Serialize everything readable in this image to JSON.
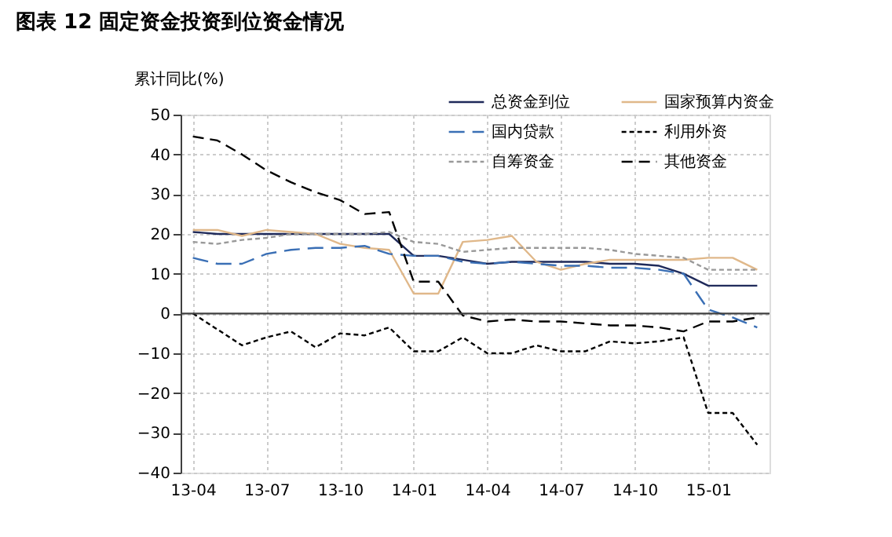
{
  "chart_data": {
    "type": "line",
    "title": "图表 12   固定资金投资到位资金情况",
    "ylabel": "累计同比(%)",
    "categories": [
      "13-04",
      null,
      null,
      "13-07",
      null,
      null,
      "13-10",
      null,
      null,
      "14-01",
      null,
      null,
      "14-04",
      null,
      null,
      "14-07",
      null,
      null,
      "14-10",
      null,
      null,
      "15-01",
      null,
      null
    ],
    "series": [
      {
        "name": "总资金到位",
        "color": "#1f2a5a",
        "line_style": "solid",
        "values": [
          20.5,
          20,
          20,
          20,
          20,
          20,
          20,
          20,
          20,
          14.5,
          14.5,
          13.5,
          12.5,
          13,
          13,
          13,
          13,
          12.5,
          12.5,
          12,
          10,
          7,
          7,
          7
        ]
      },
      {
        "name": "国家预算内资金",
        "color": "#e0b88a",
        "line_style": "solid",
        "values": [
          21,
          21,
          19.5,
          21,
          20.5,
          20,
          17.5,
          16.5,
          16,
          5,
          5,
          18,
          18.5,
          19.5,
          13,
          11,
          12.5,
          13.5,
          13.5,
          13.5,
          13.5,
          14,
          14,
          11
        ]
      },
      {
        "name": "国内贷款",
        "color": "#3a6fb5",
        "line_style": "dashed",
        "values": [
          14,
          12.5,
          12.5,
          15,
          16,
          16.5,
          16.5,
          17,
          15,
          14.5,
          14.5,
          13,
          12.5,
          13,
          12.5,
          12,
          12,
          11.5,
          11.5,
          11,
          10,
          1,
          -1,
          -3.5
        ]
      },
      {
        "name": "利用外资",
        "color": "#000000",
        "line_style": "dotted",
        "values": [
          0,
          -4,
          -8,
          -6,
          -4.5,
          -8.5,
          -5,
          -5.5,
          -3.5,
          -9.5,
          -9.5,
          -6,
          -10,
          -10,
          -8,
          -9.5,
          -9.5,
          -7,
          -7.5,
          -7,
          -6,
          -25,
          -25,
          -33
        ]
      },
      {
        "name": "自筹资金",
        "color": "#999999",
        "line_style": "dotted",
        "values": [
          18,
          17.5,
          18.5,
          19,
          20,
          20,
          20,
          20,
          20.5,
          18,
          17.5,
          15.5,
          16,
          16.5,
          16.5,
          16.5,
          16.5,
          16,
          15,
          14.5,
          14,
          11,
          11,
          11
        ]
      },
      {
        "name": "其他资金",
        "color": "#000000",
        "line_style": "dashed",
        "values": [
          44.5,
          43.5,
          40,
          36,
          33,
          30.5,
          28.5,
          25,
          25.5,
          8,
          8,
          -0.5,
          -2,
          -1.5,
          -2,
          -2,
          -2.5,
          -3,
          -3,
          -3.5,
          -4.5,
          -2,
          -2,
          -1
        ]
      }
    ],
    "ylim": [
      -40,
      50
    ],
    "yticks": [
      -40,
      -30,
      -20,
      -10,
      0,
      10,
      20,
      30,
      40,
      50
    ],
    "ref_lines": [
      {
        "axis": "y",
        "value": 0,
        "color": "#404040"
      }
    ],
    "grid": true,
    "legend": "top"
  }
}
